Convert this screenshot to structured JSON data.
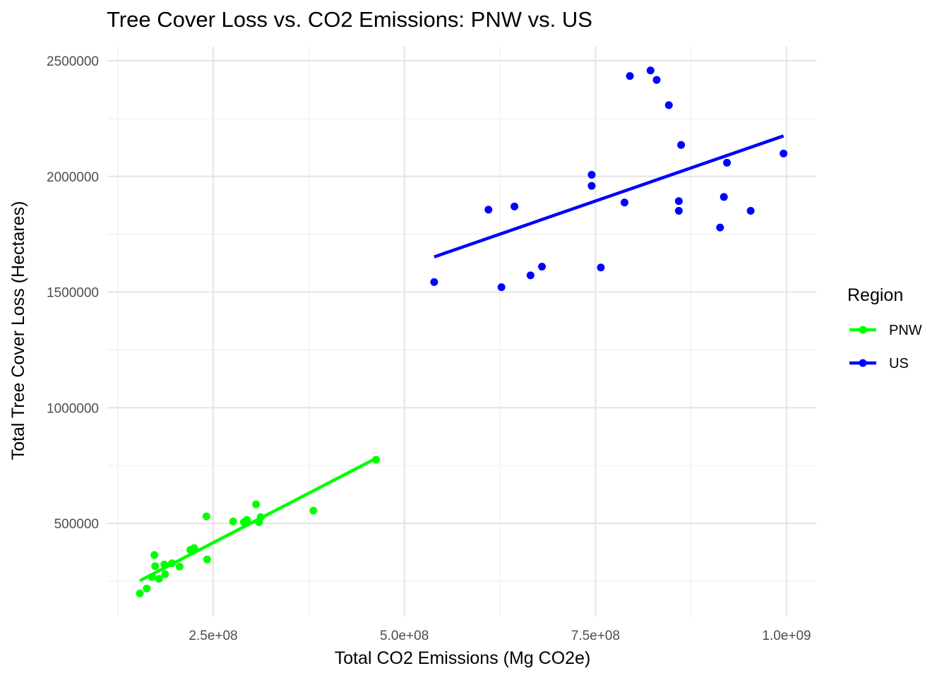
{
  "chart_data": {
    "type": "scatter",
    "title": "Tree Cover Loss vs. CO2 Emissions: PNW vs. US",
    "xlabel": "Total CO2 Emissions (Mg CO2e)",
    "ylabel": "Total Tree Cover Loss (Hectares)",
    "xlim": [
      110000000,
      1020000000
    ],
    "ylim": [
      100000000,
      2540000
    ],
    "x_ticks": [
      250000000,
      500000000,
      750000000,
      1000000000
    ],
    "x_tick_labels": [
      "2.5e+08",
      "5.0e+08",
      "7.5e+08",
      "1.0e+09"
    ],
    "y_ticks": [
      500000,
      1000000,
      1500000,
      2000000,
      2500000
    ],
    "y_tick_labels": [
      "500000",
      "1000000",
      "1500000",
      "2000000",
      "2500000"
    ],
    "grid": true,
    "legend": {
      "title": "Region",
      "position": "right"
    },
    "series": [
      {
        "name": "PNW",
        "color": "#00ff00",
        "points": [
          [
            154000000,
            197000
          ],
          [
            163000000,
            218000
          ],
          [
            170000000,
            268000
          ],
          [
            173000000,
            363000
          ],
          [
            174000000,
            315000
          ],
          [
            179000000,
            260000
          ],
          [
            186000000,
            322000
          ],
          [
            187000000,
            280000
          ],
          [
            196000000,
            327000
          ],
          [
            206000000,
            313000
          ],
          [
            220000000,
            385000
          ],
          [
            225000000,
            393000
          ],
          [
            241000000,
            530000
          ],
          [
            242000000,
            344000
          ],
          [
            276000000,
            508000
          ],
          [
            290000000,
            505000
          ],
          [
            294000000,
            515000
          ],
          [
            306000000,
            582000
          ],
          [
            310000000,
            505000
          ],
          [
            312000000,
            527000
          ],
          [
            381000000,
            555000
          ],
          [
            463000000,
            775000
          ]
        ],
        "fit": [
          [
            154000000,
            252000
          ],
          [
            463000000,
            781000
          ]
        ]
      },
      {
        "name": "US",
        "color": "#0000ff",
        "points": [
          [
            539000000,
            1543000
          ],
          [
            610000000,
            1856000
          ],
          [
            627000000,
            1521000
          ],
          [
            644000000,
            1870000
          ],
          [
            665000000,
            1572000
          ],
          [
            680000000,
            1610000
          ],
          [
            745000000,
            2007000
          ],
          [
            745000000,
            1959000
          ],
          [
            757000000,
            1606000
          ],
          [
            788000000,
            1887000
          ],
          [
            795000000,
            2434000
          ],
          [
            822000000,
            2458000
          ],
          [
            830000000,
            2417000
          ],
          [
            846000000,
            2308000
          ],
          [
            859000000,
            1893000
          ],
          [
            859000000,
            1851000
          ],
          [
            862000000,
            2136000
          ],
          [
            913000000,
            1779000
          ],
          [
            918000000,
            1911000
          ],
          [
            922000000,
            2059000
          ],
          [
            953000000,
            1851000
          ],
          [
            996000000,
            2099000
          ]
        ],
        "fit": [
          [
            539000000,
            1652000
          ],
          [
            996000000,
            2175000
          ]
        ]
      }
    ]
  }
}
